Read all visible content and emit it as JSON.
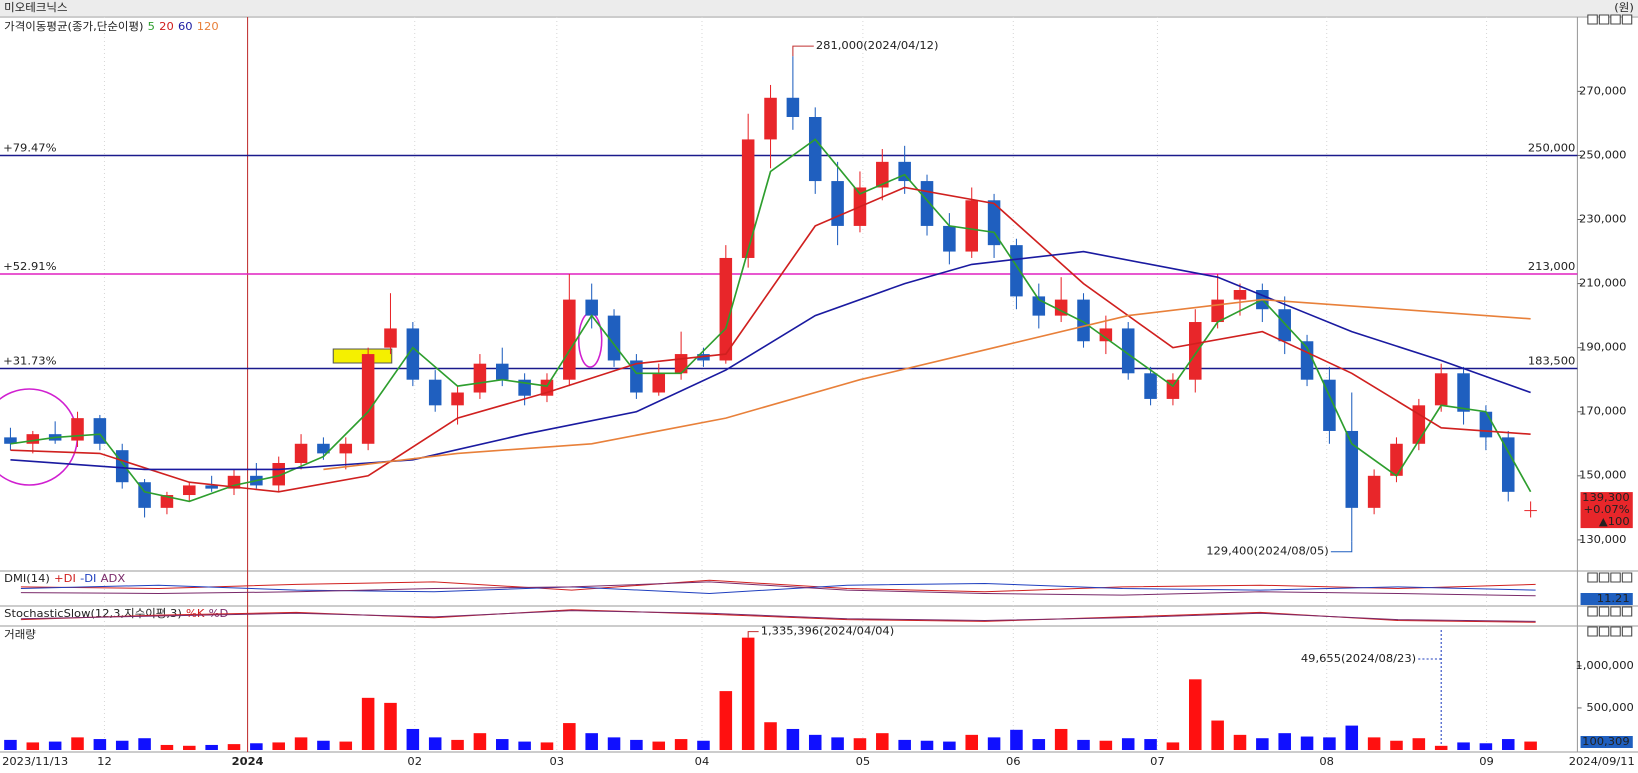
{
  "title": "미오테크닉스",
  "unit": "(원)",
  "x_labels": [
    "2023/11/13",
    "12",
    "2024",
    "02",
    "03",
    "04",
    "05",
    "06",
    "07",
    "08",
    "09",
    "2024/09/11"
  ],
  "chart_data": [
    {
      "type": "candlestick",
      "title": "가격이동평균(종가,단순이평)",
      "open": [
        162000,
        160000,
        163000,
        161000,
        168000,
        158000,
        148000,
        140000,
        144000,
        147000,
        146000,
        150000,
        147000,
        154000,
        160000,
        157000,
        160000,
        190000,
        196000,
        180000,
        172000,
        176000,
        185000,
        180000,
        175000,
        180000,
        205000,
        200000,
        186000,
        176000,
        182000,
        188000,
        186000,
        218000,
        255000,
        268000,
        262000,
        242000,
        228000,
        240000,
        248000,
        242000,
        228000,
        220000,
        236000,
        222000,
        206000,
        200000,
        205000,
        192000,
        196000,
        182000,
        174000,
        180000,
        198000,
        205000,
        208000,
        202000,
        192000,
        180000,
        164000,
        140000,
        150000,
        160000,
        172000,
        182000,
        170000,
        162000,
        139200
      ],
      "high": [
        165000,
        164000,
        167000,
        170000,
        169000,
        160000,
        149000,
        145000,
        148000,
        150000,
        152000,
        154000,
        156000,
        163000,
        162000,
        162000,
        190000,
        207000,
        198000,
        183000,
        178000,
        188000,
        190000,
        182000,
        182000,
        213000,
        210000,
        202000,
        188000,
        185000,
        195000,
        190000,
        222000,
        263000,
        272000,
        281000,
        265000,
        248000,
        245000,
        252000,
        253000,
        244000,
        232000,
        240000,
        238000,
        224000,
        210000,
        212000,
        207000,
        200000,
        198000,
        184000,
        182000,
        202000,
        213000,
        210000,
        210000,
        206000,
        194000,
        184000,
        176000,
        152000,
        162000,
        174000,
        185000,
        184000,
        172000,
        164000,
        142000
      ],
      "low": [
        158000,
        157000,
        160000,
        159000,
        158000,
        146000,
        137000,
        138000,
        142000,
        145000,
        144000,
        146000,
        145000,
        152000,
        155000,
        152000,
        158000,
        188000,
        178000,
        170000,
        166000,
        174000,
        178000,
        172000,
        173000,
        178000,
        196000,
        184000,
        174000,
        175000,
        180000,
        184000,
        185000,
        215000,
        246000,
        258000,
        238000,
        222000,
        226000,
        236000,
        238000,
        225000,
        216000,
        218000,
        218000,
        202000,
        196000,
        198000,
        190000,
        188000,
        180000,
        172000,
        172000,
        176000,
        196000,
        200000,
        198000,
        188000,
        178000,
        160000,
        129400,
        138000,
        148000,
        158000,
        170000,
        166000,
        158000,
        142000,
        137000
      ],
      "close": [
        160000,
        163000,
        161000,
        168000,
        160000,
        148000,
        140000,
        144000,
        147000,
        146000,
        150000,
        147000,
        154000,
        160000,
        157000,
        160000,
        188000,
        196000,
        180000,
        172000,
        176000,
        185000,
        180000,
        175000,
        180000,
        205000,
        200000,
        186000,
        176000,
        182000,
        188000,
        186000,
        218000,
        255000,
        268000,
        262000,
        242000,
        228000,
        240000,
        248000,
        242000,
        228000,
        220000,
        236000,
        222000,
        206000,
        200000,
        205000,
        192000,
        196000,
        182000,
        174000,
        180000,
        198000,
        205000,
        208000,
        202000,
        192000,
        180000,
        164000,
        140000,
        150000,
        160000,
        172000,
        182000,
        170000,
        162000,
        145000,
        139300
      ],
      "up_color": "#e8262a",
      "down_color": "#1f5fbf",
      "series": [
        {
          "name": "5",
          "color": "#2e9e2e",
          "x": [
            0,
            2,
            4,
            6,
            8,
            10,
            12,
            14,
            16,
            18,
            20,
            22,
            24,
            26,
            28,
            30,
            32,
            34,
            36,
            38,
            40,
            42,
            44,
            46,
            48,
            50,
            52,
            54,
            56,
            58,
            60,
            62,
            64,
            66,
            68
          ],
          "values": [
            160000,
            162000,
            163000,
            145000,
            142000,
            147000,
            150000,
            156000,
            170000,
            190000,
            178000,
            180000,
            178000,
            200000,
            182000,
            182000,
            196000,
            245000,
            255000,
            238000,
            244000,
            228000,
            226000,
            205000,
            198000,
            188000,
            178000,
            198000,
            205000,
            190000,
            160000,
            150000,
            172000,
            170000,
            145000
          ]
        },
        {
          "name": "20",
          "color": "#d0201f",
          "x": [
            0,
            4,
            8,
            12,
            16,
            20,
            24,
            28,
            32,
            36,
            40,
            44,
            48,
            52,
            56,
            60,
            64,
            68
          ],
          "values": [
            158000,
            157000,
            148000,
            145000,
            150000,
            168000,
            176000,
            185000,
            188000,
            228000,
            240000,
            235000,
            210000,
            190000,
            195000,
            182000,
            165000,
            163000
          ]
        },
        {
          "name": "60",
          "color": "#1a1aa0",
          "x": [
            0,
            6,
            12,
            18,
            23,
            28,
            32,
            36,
            40,
            43,
            48,
            54,
            60,
            64,
            68
          ],
          "values": [
            155000,
            152000,
            152000,
            155000,
            163000,
            170000,
            183000,
            200000,
            210000,
            216000,
            220000,
            212000,
            195000,
            186000,
            176000
          ]
        },
        {
          "name": "120",
          "color": "#e8803a",
          "x": [
            14,
            20,
            26,
            32,
            38,
            44,
            50,
            56,
            62,
            68
          ],
          "values": [
            152000,
            157000,
            160000,
            168000,
            180000,
            190000,
            200000,
            205000,
            202000,
            199000
          ]
        }
      ],
      "ylim": [
        120600,
        292900
      ],
      "yticks": [
        {
          "value": 130000,
          "label": "130,000"
        },
        {
          "value": 150000,
          "label": "150,000"
        },
        {
          "value": 170000,
          "label": "170,000"
        },
        {
          "value": 190000,
          "label": "190,000"
        },
        {
          "value": 210000,
          "label": "210,000"
        },
        {
          "value": 230000,
          "label": "230,000"
        },
        {
          "value": 250000,
          "label": "250,000"
        },
        {
          "value": 270000,
          "label": "270,000"
        }
      ],
      "reference_lines": [
        {
          "value": 250000,
          "label": "250,000",
          "change_label": "+79.47%",
          "color": "#1a1a8c"
        },
        {
          "value": 213000,
          "label": "213,000",
          "change_label": "+52.91%",
          "color": "#e020c0"
        },
        {
          "value": 183500,
          "label": "183,500",
          "change_label": "+31.73%",
          "color": "#1a1a8c"
        }
      ],
      "annotations": [
        {
          "value": 281000,
          "label": "281,000(2024/04/12)"
        },
        {
          "value": 129400,
          "label": "129,400(2024/08/05)"
        }
      ],
      "last": {
        "value": 139300,
        "label": "139,300",
        "change_label": "+0.07%",
        "diff_label": "▲100"
      }
    },
    {
      "type": "line",
      "title": "DMI(14)",
      "ylim": [
        0,
        40
      ],
      "series": [
        {
          "name": "+DI",
          "color": "#d0201f",
          "values": [
            22,
            20,
            25,
            28,
            18,
            30,
            20,
            16,
            22,
            24,
            20,
            25
          ]
        },
        {
          "name": "-DI",
          "color": "#1f3fbf",
          "values": [
            20,
            24,
            18,
            16,
            22,
            14,
            24,
            26,
            20,
            18,
            22,
            18
          ]
        },
        {
          "name": "ADX",
          "color": "#7a2a6a",
          "values": [
            15,
            14,
            16,
            20,
            22,
            28,
            18,
            14,
            12,
            16,
            14,
            11.21
          ]
        }
      ],
      "last_label": "11.21"
    },
    {
      "type": "line",
      "title": "StochasticSlow(12,3,지수이평,3)",
      "ylim": [
        0,
        100
      ],
      "series": [
        {
          "name": "%K",
          "color": "#d0201f",
          "values": [
            30,
            55,
            70,
            40,
            85,
            60,
            30,
            20,
            45,
            70,
            25,
            15
          ]
        },
        {
          "name": "%D",
          "color": "#7a2a6a",
          "values": [
            35,
            50,
            65,
            45,
            80,
            65,
            35,
            25,
            40,
            65,
            30,
            20
          ]
        }
      ]
    },
    {
      "type": "bar",
      "title": "거래량",
      "values": [
        120000,
        90000,
        100000,
        150000,
        130000,
        110000,
        140000,
        60000,
        50000,
        60000,
        70000,
        80000,
        90000,
        150000,
        110000,
        100000,
        620000,
        560000,
        250000,
        150000,
        120000,
        200000,
        130000,
        100000,
        90000,
        320000,
        200000,
        150000,
        120000,
        100000,
        130000,
        110000,
        700000,
        1335396,
        330000,
        250000,
        180000,
        150000,
        140000,
        200000,
        120000,
        110000,
        100000,
        180000,
        150000,
        240000,
        130000,
        250000,
        120000,
        110000,
        140000,
        130000,
        90000,
        840000,
        350000,
        180000,
        140000,
        200000,
        160000,
        150000,
        290000,
        150000,
        110000,
        140000,
        49655,
        90000,
        80000,
        130000,
        100309
      ],
      "ylim": [
        0,
        1450000
      ],
      "yticks": [
        {
          "value": 500000,
          "label": "500,000"
        },
        {
          "value": 1000000,
          "label": "1,000,000"
        }
      ],
      "annotations": [
        {
          "value": 1335396,
          "label": "1,335,396(2024/04/04)"
        },
        {
          "value": 49655,
          "label": "49,655(2024/08/23)"
        }
      ],
      "last": {
        "value": 100309,
        "label": "100,309"
      }
    }
  ]
}
